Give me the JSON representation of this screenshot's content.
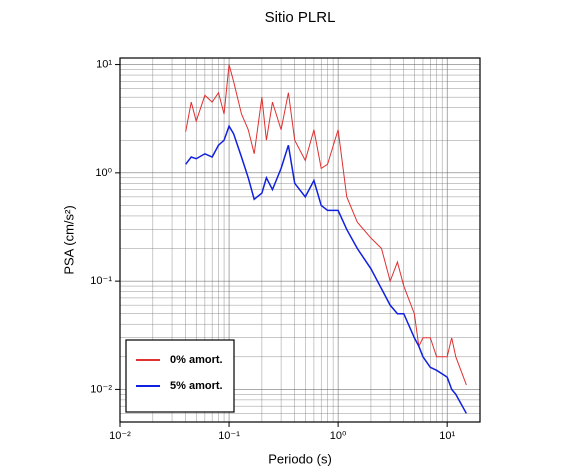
{
  "chart_data": {
    "type": "line",
    "title": "Sitio PLRL",
    "x_label": "Periodo (s)",
    "y_label": "PSA (cm/s²)",
    "x": [
      0.04,
      0.045,
      0.05,
      0.06,
      0.07,
      0.08,
      0.09,
      0.1,
      0.11,
      0.13,
      0.15,
      0.17,
      0.2,
      0.22,
      0.25,
      0.3,
      0.35,
      0.4,
      0.5,
      0.6,
      0.7,
      0.8,
      1.0,
      1.2,
      1.5,
      2.0,
      2.5,
      3.0,
      3.5,
      4.0,
      5.0,
      5.5,
      6.0,
      7.0,
      8.0,
      10,
      11,
      12,
      15
    ],
    "series": [
      {
        "name": "0% amort.",
        "color": "#e03030",
        "width": 1,
        "values": [
          2.4,
          4.5,
          3,
          5.2,
          4.5,
          5.5,
          3.5,
          10,
          7,
          3.5,
          2.5,
          1.5,
          5,
          2,
          4.5,
          2.5,
          5.5,
          2,
          1.3,
          2.5,
          1.1,
          1.2,
          2.5,
          0.6,
          0.35,
          0.25,
          0.2,
          0.1,
          0.15,
          0.09,
          0.05,
          0.025,
          0.03,
          0.03,
          0.02,
          0.02,
          0.03,
          0.02,
          0.011
        ]
      },
      {
        "name": "5% amort.",
        "color": "#1020e0",
        "width": 1.5,
        "values": [
          1.2,
          1.4,
          1.35,
          1.5,
          1.4,
          1.8,
          2.0,
          2.7,
          2.3,
          1.4,
          0.9,
          0.57,
          0.65,
          0.9,
          0.7,
          1.1,
          1.8,
          0.8,
          0.6,
          0.85,
          0.5,
          0.45,
          0.45,
          0.3,
          0.2,
          0.13,
          0.085,
          0.06,
          0.05,
          0.05,
          0.03,
          0.025,
          0.02,
          0.016,
          0.015,
          0.013,
          0.01,
          0.009,
          0.006
        ]
      }
    ],
    "xscale": "log",
    "yscale": "log",
    "xlim": [
      0.01,
      20
    ],
    "ylim": [
      0.005,
      11.5
    ],
    "xticks": [
      {
        "value": 0.01,
        "label": "10⁻²"
      },
      {
        "value": 0.1,
        "label": "10⁻¹"
      },
      {
        "value": 1,
        "label": "10⁰"
      },
      {
        "value": 10,
        "label": "10¹"
      }
    ],
    "yticks": [
      {
        "value": 0.01,
        "label": "10⁻²"
      },
      {
        "value": 0.1,
        "label": "10⁻¹"
      },
      {
        "value": 1,
        "label": "10⁰"
      },
      {
        "value": 10,
        "label": "10¹"
      }
    ],
    "grid": true,
    "legend": "lower left"
  }
}
